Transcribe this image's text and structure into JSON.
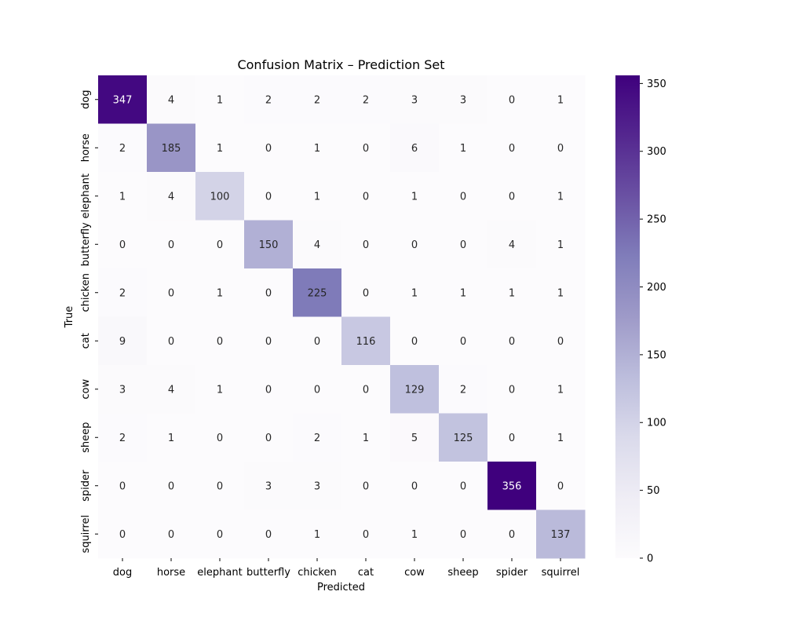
{
  "chart_data": {
    "type": "heatmap",
    "title": "Confusion Matrix – Prediction Set",
    "xlabel": "Predicted",
    "ylabel": "True",
    "x_categories": [
      "dog",
      "horse",
      "elephant",
      "butterfly",
      "chicken",
      "cat",
      "cow",
      "sheep",
      "spider",
      "squirrel"
    ],
    "y_categories": [
      "dog",
      "horse",
      "elephant",
      "butterfly",
      "chicken",
      "cat",
      "cow",
      "sheep",
      "spider",
      "squirrel"
    ],
    "values": [
      [
        347,
        4,
        1,
        2,
        2,
        2,
        3,
        3,
        0,
        1
      ],
      [
        2,
        185,
        1,
        0,
        1,
        0,
        6,
        1,
        0,
        0
      ],
      [
        1,
        4,
        100,
        0,
        1,
        0,
        1,
        0,
        0,
        1
      ],
      [
        0,
        0,
        0,
        150,
        4,
        0,
        0,
        0,
        4,
        1
      ],
      [
        2,
        0,
        1,
        0,
        225,
        0,
        1,
        1,
        1,
        1
      ],
      [
        9,
        0,
        0,
        0,
        0,
        116,
        0,
        0,
        0,
        0
      ],
      [
        3,
        4,
        1,
        0,
        0,
        0,
        129,
        2,
        0,
        1
      ],
      [
        2,
        1,
        0,
        0,
        2,
        1,
        5,
        125,
        0,
        1
      ],
      [
        0,
        0,
        0,
        3,
        3,
        0,
        0,
        0,
        356,
        0
      ],
      [
        0,
        0,
        0,
        0,
        1,
        0,
        1,
        0,
        0,
        137
      ]
    ],
    "colormap": "Purples",
    "colormap_stops": [
      "#fcfbfd",
      "#efedf5",
      "#dadaeb",
      "#bcbddc",
      "#9e9ac8",
      "#807dba",
      "#6a51a3",
      "#54278f",
      "#3f007d"
    ],
    "color_range": [
      0,
      356
    ],
    "colorbar_ticks": [
      0,
      50,
      100,
      150,
      200,
      250,
      300,
      350
    ],
    "annotated": true,
    "grid": false
  }
}
